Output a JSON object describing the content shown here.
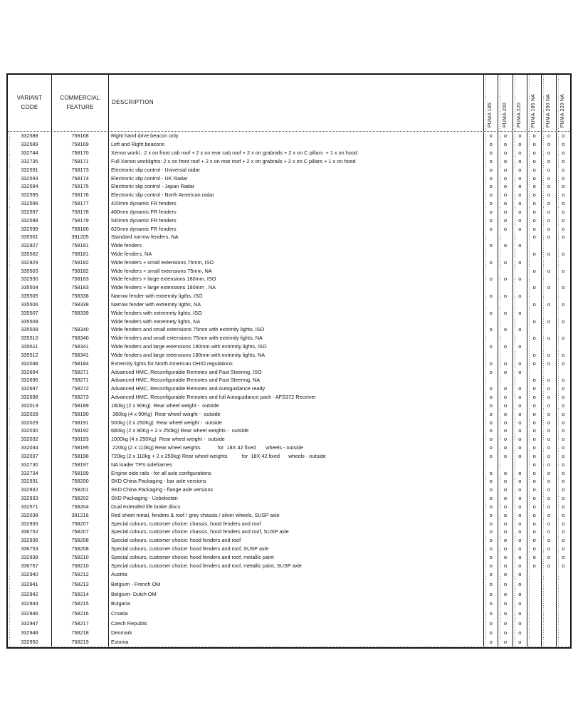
{
  "table": {
    "headers": {
      "variant": "VARIANT\nCODE",
      "feature": "COMMERCIAL\nFEATURE",
      "description": "DESCRIPTION"
    },
    "model_columns": [
      "PUMA 185",
      "PUMA 200",
      "PUMA 220",
      "PUMA 185 NA",
      "PUMA 200 NA",
      "PUMA 220 NA"
    ],
    "mark_glyph": "o",
    "rows": [
      {
        "variant": "332588",
        "feature": "758168",
        "description": "Right hand drive beacon only",
        "marks": [
          1,
          1,
          1,
          1,
          1,
          1
        ]
      },
      {
        "variant": "332589",
        "feature": "758169",
        "description": "Left and Right beacons",
        "marks": [
          1,
          1,
          1,
          1,
          1,
          1
        ]
      },
      {
        "variant": "332744",
        "feature": "758170",
        "description": "Xenon workl.: 2 x on front cab roof + 2 x on rear cab roof + 2 x on grabrails + 2 x on C pillars  + 1 x on hood",
        "marks": [
          1,
          1,
          1,
          1,
          1,
          1
        ]
      },
      {
        "variant": "332735",
        "feature": "758171",
        "description": "Full Xenon worklights: 2 x on front roof + 2 x on rear roof + 2 x on grabrails + 2 x on C pillars + 1 x on hood",
        "marks": [
          1,
          1,
          1,
          1,
          1,
          1
        ]
      },
      {
        "variant": "332591",
        "feature": "758173",
        "description": "Electronic slip control - Universal radar",
        "marks": [
          1,
          1,
          1,
          1,
          1,
          1
        ]
      },
      {
        "variant": "332593",
        "feature": "758174",
        "description": "Electronic slip control - UK Radar",
        "marks": [
          1,
          1,
          1,
          1,
          1,
          1
        ]
      },
      {
        "variant": "332594",
        "feature": "758175",
        "description": "Electronic slip control - Japan Radar",
        "marks": [
          1,
          1,
          1,
          1,
          1,
          1
        ]
      },
      {
        "variant": "332595",
        "feature": "758176",
        "description": "Electronic slip control - North American radar",
        "marks": [
          1,
          1,
          1,
          1,
          1,
          1
        ]
      },
      {
        "variant": "332596",
        "feature": "758177",
        "description": "420mm dynamic FR fenders",
        "marks": [
          1,
          1,
          1,
          1,
          1,
          1
        ]
      },
      {
        "variant": "332597",
        "feature": "758178",
        "description": "480mm dynamic FR fenders",
        "marks": [
          1,
          1,
          1,
          1,
          1,
          1
        ]
      },
      {
        "variant": "332598",
        "feature": "758179",
        "description": "540mm dynamic FR fenders",
        "marks": [
          1,
          1,
          1,
          1,
          1,
          1
        ]
      },
      {
        "variant": "332599",
        "feature": "758180",
        "description": "620mm dynamic FR fenders",
        "marks": [
          1,
          1,
          1,
          1,
          1,
          1
        ]
      },
      {
        "variant": "335501",
        "feature": "391205",
        "description": "Standard narrow fenders, NA",
        "marks": [
          0,
          0,
          0,
          1,
          1,
          1
        ]
      },
      {
        "variant": "332927",
        "feature": "758181",
        "description": "Wide fenders",
        "marks": [
          1,
          1,
          1,
          0,
          0,
          0
        ]
      },
      {
        "variant": "335502",
        "feature": "758181",
        "description": "Wide fenders, NA",
        "marks": [
          0,
          0,
          0,
          1,
          1,
          1
        ]
      },
      {
        "variant": "332929",
        "feature": "758182",
        "description": "Wide fenders + small extensions 75mm, ISO",
        "marks": [
          1,
          1,
          1,
          0,
          0,
          0
        ]
      },
      {
        "variant": "335503",
        "feature": "758182",
        "description": "Wide fenders + small extensions 75mm, NA",
        "marks": [
          0,
          0,
          0,
          1,
          1,
          1
        ]
      },
      {
        "variant": "332930",
        "feature": "758183",
        "description": "Wide fenders + large extensions 180mm, ISO",
        "marks": [
          1,
          1,
          1,
          0,
          0,
          0
        ]
      },
      {
        "variant": "335504",
        "feature": "758183",
        "description": "Wide fenders + large extensions 180mm , NA",
        "marks": [
          0,
          0,
          0,
          1,
          1,
          1
        ]
      },
      {
        "variant": "335505",
        "feature": "758338",
        "description": "Narrow fender with extremity ligths, ISO",
        "marks": [
          1,
          1,
          1,
          0,
          0,
          0
        ]
      },
      {
        "variant": "335506",
        "feature": "758338",
        "description": "Narrow fender with extremity ligths, NA",
        "marks": [
          0,
          0,
          0,
          1,
          1,
          1
        ]
      },
      {
        "variant": "335507",
        "feature": "758339",
        "description": "Wide fenders with extremety lights, ISO",
        "marks": [
          1,
          1,
          1,
          0,
          0,
          0
        ]
      },
      {
        "variant": "335508",
        "feature": "",
        "description": "Wide fenders with extremety lights, NA",
        "marks": [
          0,
          0,
          0,
          1,
          1,
          1
        ]
      },
      {
        "variant": "335509",
        "feature": "758340",
        "description": "Wide fenders and small extensions 75mm with extrimity lights, ISO",
        "marks": [
          1,
          1,
          1,
          0,
          0,
          0
        ]
      },
      {
        "variant": "335510",
        "feature": "758340",
        "description": "Wide fenders and small extensions 75mm with extrimity lights, NA",
        "marks": [
          0,
          0,
          0,
          1,
          1,
          1
        ]
      },
      {
        "variant": "335511",
        "feature": "758341",
        "description": "Wide fenders and large extensions 180mm with extrimity lights, ISO",
        "marks": [
          1,
          1,
          1,
          0,
          0,
          0
        ]
      },
      {
        "variant": "335512",
        "feature": "758341",
        "description": "Wide fenders and large extensions 180mm with extrimity lights, NA",
        "marks": [
          0,
          0,
          0,
          1,
          1,
          1
        ]
      },
      {
        "variant": "332048",
        "feature": "758184",
        "description": "Extremity lights for North American OHIO regulations",
        "marks": [
          1,
          1,
          1,
          1,
          1,
          1
        ]
      },
      {
        "variant": "332694",
        "feature": "758271",
        "description": "Advanced HMC, Reconfigurable Remotes and Fast Steering, ISO",
        "marks": [
          1,
          1,
          1,
          0,
          0,
          0
        ]
      },
      {
        "variant": "332696",
        "feature": "758271",
        "description": "Advanced HMC, Reconfigurable Remotes and Fast Steering, NA",
        "marks": [
          0,
          0,
          0,
          1,
          1,
          1
        ]
      },
      {
        "variant": "332697",
        "feature": "758272",
        "description": "Advanced HMC, Reconfigurable Remotes and Autoguidance ready",
        "marks": [
          1,
          1,
          1,
          1,
          1,
          1
        ]
      },
      {
        "variant": "332698",
        "feature": "758273",
        "description": "Advanced HMC, Reconfigurable Remotes and full Autoguidance pack - AFS372 Receiver",
        "marks": [
          1,
          1,
          1,
          1,
          1,
          1
        ]
      },
      {
        "variant": "332019",
        "feature": "758189",
        "description": "180kg (2 x 90Kg)  Rear wheel weight -  outside",
        "marks": [
          1,
          1,
          1,
          1,
          1,
          1
        ]
      },
      {
        "variant": "332028",
        "feature": "758190",
        "description": " 360kg (4 x 90Kg)  Rear wheel weight -  outside",
        "marks": [
          1,
          1,
          1,
          1,
          1,
          1
        ]
      },
      {
        "variant": "332029",
        "feature": "758191",
        "description": "500kg (2 x 250Kg)  Rear wheel weight -  outside",
        "marks": [
          1,
          1,
          1,
          1,
          1,
          1
        ]
      },
      {
        "variant": "332030",
        "feature": "758192",
        "description": "680kg (2 x 90Kg + 2 x 250kg) Rear wheel weights -  outside",
        "marks": [
          1,
          1,
          1,
          1,
          1,
          1
        ]
      },
      {
        "variant": "332032",
        "feature": "758193",
        "description": "1000kg (4 x 250Kg)  Rear wheel weight -  outside",
        "marks": [
          1,
          1,
          1,
          1,
          1,
          1
        ]
      },
      {
        "variant": "332034",
        "feature": "758195",
        "description": " 220kg (2 x 110kg) Rear wheel weights            for  18X 42 fixed       wheels - outside",
        "marks": [
          1,
          1,
          1,
          1,
          1,
          1
        ]
      },
      {
        "variant": "332037",
        "feature": "758196",
        "description": "720kg (2 x 110kg + 2 x 250kg) Rear wheel weights          for  18X 42 fixed      wheels - outside",
        "marks": [
          1,
          1,
          1,
          1,
          1,
          1
        ]
      },
      {
        "variant": "332730",
        "feature": "758197",
        "description": "NA loader TPS sideframes",
        "marks": [
          0,
          0,
          0,
          1,
          1,
          1
        ]
      },
      {
        "variant": "332734",
        "feature": "758199",
        "description": "Engine side rails - for all axle configurations",
        "marks": [
          1,
          1,
          1,
          1,
          1,
          1
        ]
      },
      {
        "variant": "332931",
        "feature": "758200",
        "description": "SKD China Packaging - bar axle versions",
        "marks": [
          1,
          1,
          1,
          1,
          1,
          1
        ]
      },
      {
        "variant": "332932",
        "feature": "758201",
        "description": "SKD China Packaging - flange axle versions",
        "marks": [
          1,
          1,
          1,
          1,
          1,
          1
        ]
      },
      {
        "variant": "332933",
        "feature": "758202",
        "description": "SKD Packaging - Uzbekistan",
        "marks": [
          1,
          1,
          1,
          1,
          1,
          1
        ]
      },
      {
        "variant": "332571",
        "feature": "758204",
        "description": "Dual extended life brake discs",
        "marks": [
          1,
          1,
          1,
          1,
          1,
          1
        ]
      },
      {
        "variant": "332038",
        "feature": "391216",
        "description": "Red sheet metal, fenders & roof / grey chassis / silver wheels, SUSP axle",
        "marks": [
          1,
          1,
          1,
          1,
          1,
          1
        ]
      },
      {
        "variant": "332935",
        "feature": "758207",
        "description": "Special colours, customer choice: chassis, hood fenders and roof",
        "marks": [
          1,
          1,
          1,
          1,
          1,
          1
        ]
      },
      {
        "variant": "336752",
        "feature": "758207",
        "description": "Special colours, customer choice: chassis, hood fenders and roof, SUSP axle",
        "marks": [
          1,
          1,
          1,
          1,
          1,
          1
        ]
      },
      {
        "variant": "332936",
        "feature": "758208",
        "description": "Special colours, customer choice: hood fenders and roof",
        "marks": [
          1,
          1,
          1,
          1,
          1,
          1
        ]
      },
      {
        "variant": "336753",
        "feature": "758208",
        "description": "Special colours, customer choice: hood fenders and roof, SUSP axle",
        "marks": [
          1,
          1,
          1,
          1,
          1,
          1
        ]
      },
      {
        "variant": "332938",
        "feature": "758210",
        "description": "Special colours, customer choice: hood fenders and roof, metallic paint",
        "marks": [
          1,
          1,
          1,
          1,
          1,
          1
        ]
      },
      {
        "variant": "336757",
        "feature": "758210",
        "description": "Special colours, customer choice: hood fenders and roof, metallic paint, SUSP axle",
        "marks": [
          1,
          1,
          1,
          1,
          1,
          1
        ]
      },
      {
        "variant": "332940",
        "feature": "758212",
        "description": "Austria",
        "marks": [
          1,
          1,
          1,
          0,
          0,
          0
        ]
      },
      {
        "variant": "332941",
        "feature": "758213",
        "description": "Belgium - French OM",
        "marks": [
          1,
          1,
          1,
          0,
          0,
          0
        ]
      },
      {
        "variant": "332942",
        "feature": "758214",
        "description": "Belgium- Dutch OM",
        "marks": [
          1,
          1,
          1,
          0,
          0,
          0
        ]
      },
      {
        "variant": "332944",
        "feature": "758215",
        "description": "Bulgaria",
        "marks": [
          1,
          1,
          1,
          0,
          0,
          0
        ]
      },
      {
        "variant": "332946",
        "feature": "758216",
        "description": "Croatia",
        "marks": [
          1,
          1,
          1,
          0,
          0,
          0
        ]
      },
      {
        "variant": "332947",
        "feature": "758217",
        "description": "Czech Republic",
        "marks": [
          1,
          1,
          1,
          0,
          0,
          0
        ]
      },
      {
        "variant": "332948",
        "feature": "758218",
        "description": "Denmark",
        "marks": [
          1,
          1,
          1,
          0,
          0,
          0
        ]
      },
      {
        "variant": "332950",
        "feature": "758219",
        "description": "Estonia",
        "marks": [
          1,
          1,
          1,
          0,
          0,
          0
        ]
      }
    ]
  }
}
